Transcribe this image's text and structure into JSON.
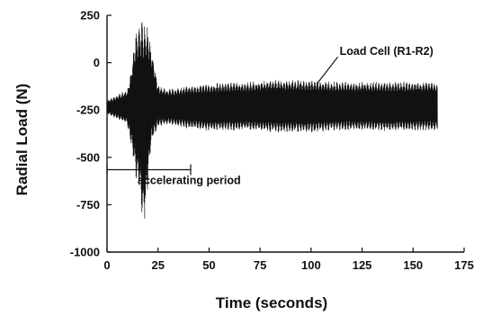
{
  "chart_data": {
    "type": "line",
    "xlabel": "Time (seconds)",
    "ylabel": "Radial Load (N)",
    "xlim": [
      0,
      175
    ],
    "ylim": [
      -1000,
      250
    ],
    "x_ticks": [
      0,
      25,
      50,
      75,
      100,
      125,
      150,
      175
    ],
    "y_ticks": [
      250,
      0,
      -250,
      -500,
      -750,
      -1000
    ],
    "grid": false,
    "legend": "none",
    "series": [
      {
        "name": "Load Cell (R1-R2)",
        "color": "#111111",
        "x": [
          0,
          5,
          10,
          12,
          14,
          16,
          18,
          20,
          22,
          25,
          30,
          40,
          50,
          60,
          70,
          80,
          90,
          100,
          110,
          120,
          130,
          140,
          150,
          160,
          162
        ],
        "ymax": [
          -200,
          -170,
          -140,
          -20,
          150,
          210,
          240,
          200,
          60,
          -120,
          -140,
          -120,
          -110,
          -100,
          -100,
          -90,
          -90,
          -90,
          -100,
          -100,
          -100,
          -100,
          -100,
          -100,
          -110
        ],
        "ymin": [
          -270,
          -300,
          -330,
          -450,
          -600,
          -700,
          -880,
          -650,
          -420,
          -340,
          -330,
          -350,
          -360,
          -360,
          -360,
          -370,
          -370,
          -370,
          -360,
          -360,
          -360,
          -360,
          -360,
          -360,
          -360
        ]
      }
    ],
    "annotations": [
      {
        "text": "Load Cell (R1-R2)",
        "x": 114,
        "y": 40,
        "arrow_to": [
          103,
          -110
        ]
      },
      {
        "text": "accelerating period",
        "x": 15,
        "y": -640,
        "span": [
          0,
          41
        ],
        "span_y": -565
      }
    ]
  }
}
